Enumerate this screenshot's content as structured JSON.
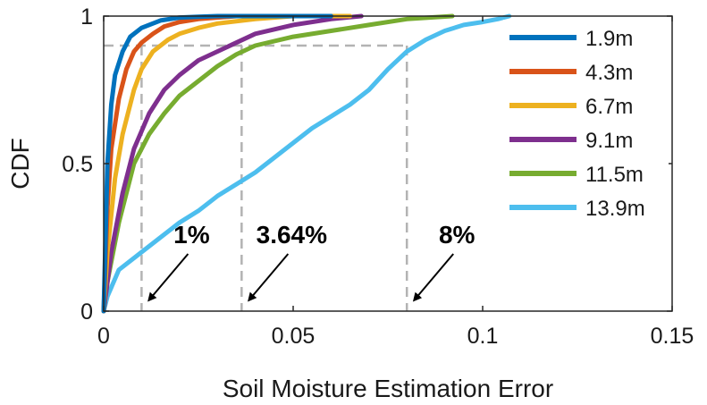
{
  "chart_data": {
    "type": "line",
    "title": "",
    "xlabel": "Soil Moisture Estimation Error",
    "ylabel": "CDF",
    "xlim": [
      0,
      0.15
    ],
    "ylim": [
      0,
      1
    ],
    "xticks": [
      0,
      0.05,
      0.1,
      0.15
    ],
    "xtick_labels": [
      "0",
      "0.05",
      "0.1",
      "0.15"
    ],
    "yticks": [
      0,
      0.5,
      1
    ],
    "ytick_labels": [
      "0",
      "0.5",
      "1"
    ],
    "legend_position": "top-right",
    "series": [
      {
        "name": "1.9m",
        "color": "#0072BD",
        "x": [
          0,
          0.001,
          0.002,
          0.003,
          0.005,
          0.007,
          0.01,
          0.015,
          0.02,
          0.025,
          0.03,
          0.04,
          0.06
        ],
        "y": [
          0,
          0.5,
          0.7,
          0.8,
          0.88,
          0.93,
          0.96,
          0.985,
          0.995,
          0.998,
          1,
          1,
          1
        ]
      },
      {
        "name": "4.3m",
        "color": "#D95319",
        "x": [
          0,
          0.001,
          0.002,
          0.004,
          0.006,
          0.008,
          0.01,
          0.013,
          0.016,
          0.02,
          0.025,
          0.035,
          0.06
        ],
        "y": [
          0,
          0.35,
          0.55,
          0.72,
          0.82,
          0.88,
          0.91,
          0.94,
          0.965,
          0.98,
          0.99,
          1,
          1
        ]
      },
      {
        "name": "6.7m",
        "color": "#EDB120",
        "x": [
          0,
          0.001,
          0.003,
          0.005,
          0.008,
          0.01,
          0.013,
          0.017,
          0.02,
          0.025,
          0.03,
          0.04,
          0.05,
          0.065
        ],
        "y": [
          0,
          0.2,
          0.45,
          0.6,
          0.75,
          0.82,
          0.88,
          0.92,
          0.94,
          0.96,
          0.975,
          0.99,
          1,
          1
        ]
      },
      {
        "name": "9.1m",
        "color": "#7E2F8E",
        "x": [
          0,
          0.002,
          0.005,
          0.008,
          0.012,
          0.016,
          0.02,
          0.025,
          0.03,
          0.035,
          0.04,
          0.05,
          0.06,
          0.068
        ],
        "y": [
          0,
          0.2,
          0.4,
          0.55,
          0.67,
          0.75,
          0.8,
          0.85,
          0.88,
          0.91,
          0.94,
          0.97,
          0.99,
          1
        ]
      },
      {
        "name": "11.5m",
        "color": "#77AC30",
        "x": [
          0,
          0.001,
          0.004,
          0.008,
          0.012,
          0.016,
          0.02,
          0.025,
          0.03,
          0.035,
          0.04,
          0.05,
          0.06,
          0.07,
          0.08,
          0.092
        ],
        "y": [
          0,
          0.1,
          0.3,
          0.5,
          0.6,
          0.67,
          0.73,
          0.78,
          0.83,
          0.87,
          0.9,
          0.93,
          0.95,
          0.97,
          0.99,
          1
        ]
      },
      {
        "name": "13.9m",
        "color": "#4DBEEE",
        "x": [
          0,
          0.001,
          0.004,
          0.01,
          0.015,
          0.02,
          0.025,
          0.03,
          0.035,
          0.04,
          0.045,
          0.05,
          0.055,
          0.06,
          0.065,
          0.07,
          0.075,
          0.08,
          0.085,
          0.09,
          0.095,
          0.1,
          0.104,
          0.107
        ],
        "y": [
          0,
          0.05,
          0.14,
          0.2,
          0.25,
          0.3,
          0.34,
          0.39,
          0.43,
          0.47,
          0.52,
          0.57,
          0.62,
          0.66,
          0.7,
          0.75,
          0.82,
          0.88,
          0.92,
          0.95,
          0.97,
          0.98,
          0.99,
          1
        ]
      }
    ],
    "reference_line": {
      "y": 0.9,
      "x_values": [
        0.01,
        0.0364,
        0.08
      ]
    },
    "annotations": [
      {
        "text": "1%",
        "x": 0.01
      },
      {
        "text": "3.64%",
        "x": 0.0364
      },
      {
        "text": "8%",
        "x": 0.08
      }
    ]
  }
}
